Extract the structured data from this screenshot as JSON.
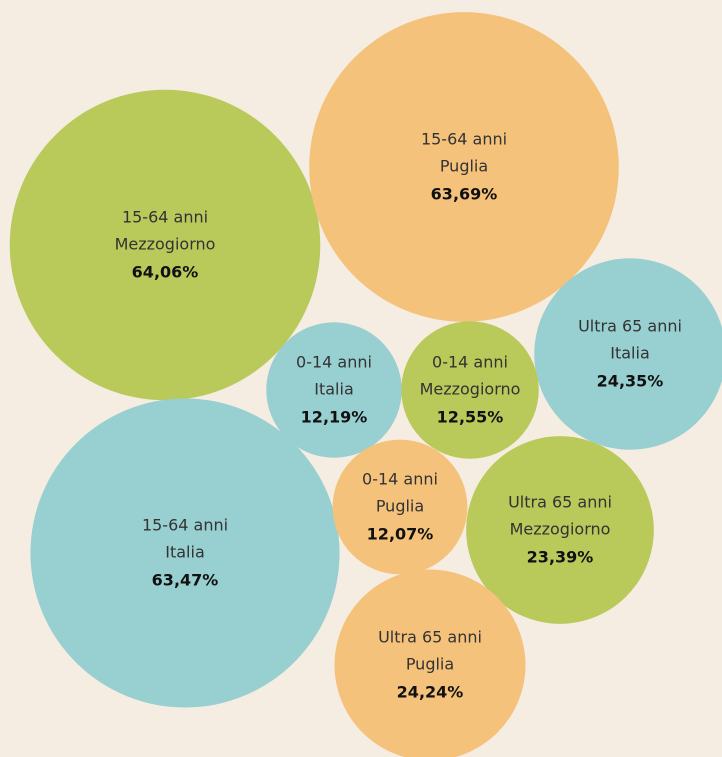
{
  "chart_data": {
    "type": "bubble",
    "points": [
      {
        "group": "15-64 anni",
        "region": "Mezzogiorno",
        "value": 64.06,
        "value_label": "64,06%",
        "color": "#b9c95a"
      },
      {
        "group": "15-64 anni",
        "region": "Puglia",
        "value": 63.69,
        "value_label": "63,69%",
        "color": "#f5c27c"
      },
      {
        "group": "15-64 anni",
        "region": "Italia",
        "value": 63.47,
        "value_label": "63,47%",
        "color": "#98cfd0"
      },
      {
        "group": "Ultra 65 anni",
        "region": "Italia",
        "value": 24.35,
        "value_label": "24,35%",
        "color": "#98cfd0"
      },
      {
        "group": "0-14 anni",
        "region": "Italia",
        "value": 12.19,
        "value_label": "12,19%",
        "color": "#98cfd0"
      },
      {
        "group": "0-14 anni",
        "region": "Mezzogiorno",
        "value": 12.55,
        "value_label": "12,55%",
        "color": "#b9c95a"
      },
      {
        "group": "0-14 anni",
        "region": "Puglia",
        "value": 12.07,
        "value_label": "12,07%",
        "color": "#f5c27c"
      },
      {
        "group": "Ultra 65 anni",
        "region": "Mezzogiorno",
        "value": 23.39,
        "value_label": "23,39%",
        "color": "#b9c95a"
      },
      {
        "group": "Ultra 65 anni",
        "region": "Puglia",
        "value": 24.24,
        "value_label": "24,24%",
        "color": "#f5c27c"
      }
    ]
  }
}
